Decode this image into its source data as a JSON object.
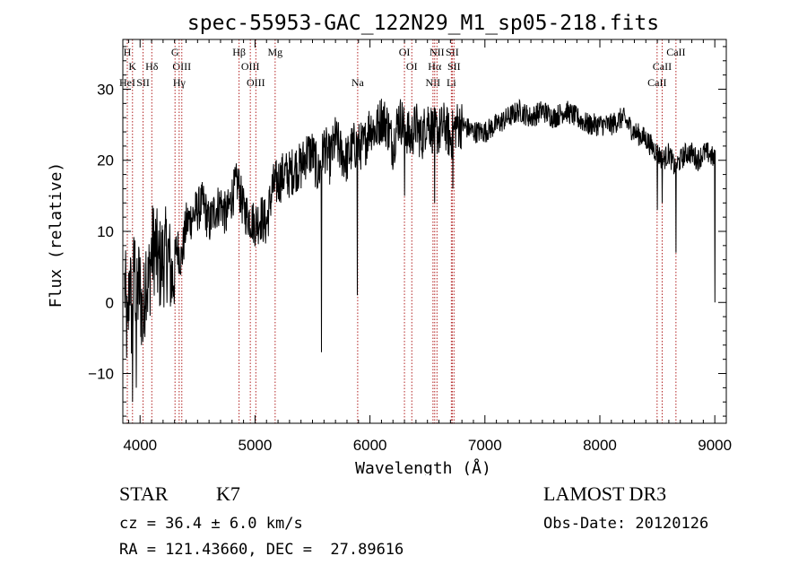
{
  "chart_data": {
    "type": "line",
    "title": "spec-55953-GAC_122N29_M1_sp05-218.fits",
    "xlabel": "Wavelength (Å)",
    "ylabel": "Flux (relative)",
    "xlim": [
      3850,
      9100
    ],
    "ylim": [
      -17,
      37
    ],
    "x_ticks": [
      4000,
      5000,
      6000,
      7000,
      8000,
      9000
    ],
    "y_ticks": [
      -10,
      0,
      10,
      20,
      30
    ],
    "x_tick_labels": [
      "4000",
      "5000",
      "6000",
      "7000",
      "8000",
      "9000"
    ],
    "y_tick_labels": [
      "−10",
      "0",
      "10",
      "20",
      "30"
    ],
    "grid": false,
    "series": [
      {
        "color": "#000000",
        "x": [
          3870,
          3890,
          3910,
          3930,
          3950,
          3970,
          3990,
          4010,
          4030,
          4050,
          4070,
          4100,
          4130,
          4160,
          4200,
          4240,
          4280,
          4320,
          4360,
          4400,
          4450,
          4500,
          4550,
          4600,
          4650,
          4700,
          4750,
          4800,
          4850,
          4900,
          4950,
          5000,
          5050,
          5100,
          5150,
          5200,
          5250,
          5300,
          5350,
          5400,
          5450,
          5500,
          5550,
          5580,
          5600,
          5650,
          5700,
          5750,
          5800,
          5850,
          5900,
          5950,
          6000,
          6050,
          6100,
          6150,
          6200,
          6250,
          6300,
          6350,
          6400,
          6450,
          6500,
          6550,
          6600,
          6650,
          6700,
          6750,
          6800,
          6900,
          7000,
          7100,
          7200,
          7300,
          7400,
          7500,
          7600,
          7700,
          7800,
          7900,
          8000,
          8100,
          8200,
          8300,
          8400,
          8450,
          8500,
          8550,
          8600,
          8650,
          8700,
          8750,
          8800,
          8850,
          8900,
          8950,
          9000
        ],
        "y": [
          2,
          -6,
          5,
          -4,
          6,
          -1,
          3,
          0,
          -3,
          5,
          2,
          7,
          8,
          5,
          6,
          7,
          3,
          8,
          6,
          11,
          12,
          13,
          14,
          11,
          13,
          14,
          12,
          15,
          17,
          13,
          12,
          11,
          12,
          11,
          16,
          17,
          18,
          18,
          19,
          19,
          21,
          21,
          18,
          20,
          22,
          20,
          23,
          21,
          20,
          22,
          22,
          22,
          25,
          24,
          26,
          25,
          22,
          26,
          25,
          23,
          25,
          23,
          26,
          24,
          24,
          25,
          23,
          25,
          25,
          24,
          24,
          25,
          26,
          27,
          26,
          27,
          26,
          27,
          26,
          25,
          25,
          25,
          26,
          24,
          23,
          22,
          21,
          20,
          21,
          19,
          20,
          21,
          21,
          20,
          21,
          21,
          20
        ]
      }
    ],
    "spikes": [
      {
        "x": 5577,
        "y": -7
      },
      {
        "x": 5890,
        "y": 1
      },
      {
        "x": 6300,
        "y": 15
      },
      {
        "x": 6563,
        "y": 14
      },
      {
        "x": 6720,
        "y": 16
      },
      {
        "x": 8500,
        "y": 13
      },
      {
        "x": 8542,
        "y": 14
      },
      {
        "x": 8662,
        "y": 7
      },
      {
        "x": 9000,
        "y": 0
      },
      {
        "x": 4300,
        "y": 2
      },
      {
        "x": 3934,
        "y": -14
      },
      {
        "x": 3968,
        "y": -12
      }
    ]
  },
  "lines": [
    {
      "x": 3889,
      "row": 0,
      "label": "H"
    },
    {
      "x": 3934,
      "row": 1,
      "label": "K"
    },
    {
      "x": 3889,
      "row": 2,
      "label": "HeI"
    },
    {
      "x": 4026,
      "row": 2,
      "label": "SII"
    },
    {
      "x": 4102,
      "row": 1,
      "label": "Hδ"
    },
    {
      "x": 4304,
      "row": 0,
      "label": "G"
    },
    {
      "x": 4363,
      "row": 1,
      "label": "OIII"
    },
    {
      "x": 4340,
      "row": 2,
      "label": "Hγ"
    },
    {
      "x": 4861,
      "row": 0,
      "label": "Hβ"
    },
    {
      "x": 4959,
      "row": 1,
      "label": "OIII"
    },
    {
      "x": 5007,
      "row": 2,
      "label": "OIII"
    },
    {
      "x": 5175,
      "row": 0,
      "label": "Mg"
    },
    {
      "x": 5893,
      "row": 2,
      "label": "Na"
    },
    {
      "x": 6300,
      "row": 0,
      "label": "OI"
    },
    {
      "x": 6364,
      "row": 1,
      "label": "OI"
    },
    {
      "x": 6548,
      "row": 2,
      "label": "NII"
    },
    {
      "x": 6563,
      "row": 1,
      "label": "Hα"
    },
    {
      "x": 6583,
      "row": 0,
      "label": "NII"
    },
    {
      "x": 6716,
      "row": 0,
      "label": "SII"
    },
    {
      "x": 6731,
      "row": 1,
      "label": "SII"
    },
    {
      "x": 6708,
      "row": 2,
      "label": "Li"
    },
    {
      "x": 8498,
      "row": 2,
      "label": "CaII"
    },
    {
      "x": 8542,
      "row": 1,
      "label": "CaII"
    },
    {
      "x": 8662,
      "row": 0,
      "label": "CaII"
    }
  ],
  "info": {
    "class": "STAR",
    "subclass": "K7",
    "survey": "LAMOST DR3",
    "cz": "cz = 36.4 ± 6.0 km/s",
    "obs_date": "Obs-Date: 20120126",
    "radec": "RA = 121.43660, DEC =  27.89616"
  },
  "colors": {
    "axis": "#000000",
    "spectrum": "#000000",
    "line_marker": "#b22222"
  }
}
